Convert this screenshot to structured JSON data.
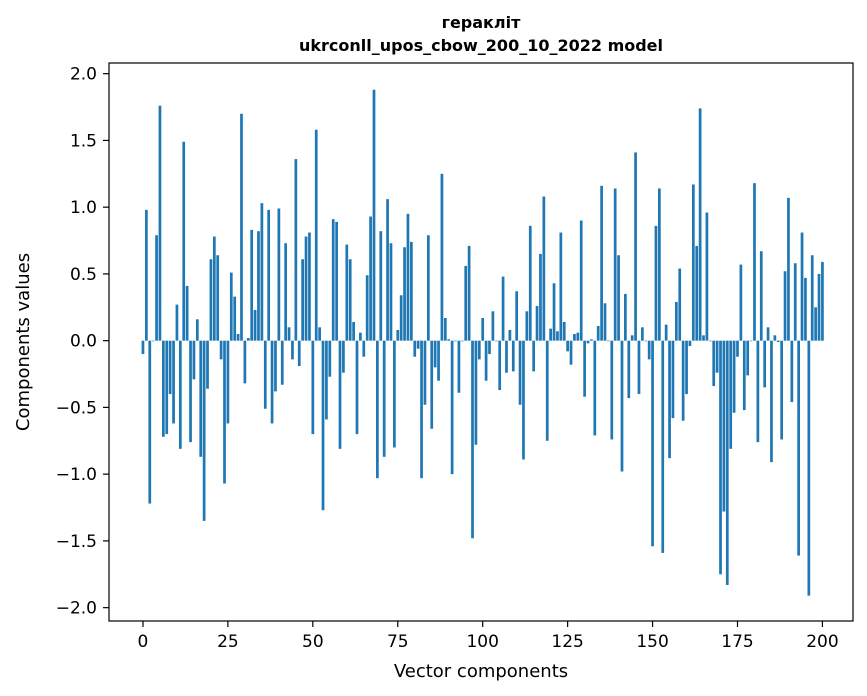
{
  "chart_data": {
    "type": "bar",
    "title": "гераклiт",
    "subtitle": "ukrconll_upos_cbow_200_10_2022 model",
    "xlabel": "Vector components",
    "ylabel": "Components values",
    "xlim": [
      -10,
      209
    ],
    "ylim": [
      -2.1,
      2.08
    ],
    "xticks": [
      0,
      25,
      50,
      75,
      100,
      125,
      150,
      175,
      200
    ],
    "yticks": [
      -2.0,
      -1.5,
      -1.0,
      -0.5,
      0.0,
      0.5,
      1.0,
      1.5,
      2.0
    ],
    "ytick_labels": [
      "−2.0",
      "−1.5",
      "−1.0",
      "−0.5",
      "0.0",
      "0.5",
      "1.0",
      "1.5",
      "2.0"
    ],
    "grid": false,
    "bar_color": "#1f77b4",
    "values": [
      -0.1,
      0.98,
      -1.22,
      0.0,
      0.79,
      1.76,
      -0.72,
      -0.7,
      -0.4,
      -0.62,
      0.27,
      -0.81,
      1.49,
      0.41,
      -0.76,
      -0.29,
      0.16,
      -0.87,
      -1.35,
      -0.36,
      0.61,
      0.78,
      0.64,
      -0.14,
      -1.07,
      -0.62,
      0.51,
      0.33,
      0.05,
      1.7,
      -0.32,
      0.02,
      0.83,
      0.23,
      0.82,
      1.03,
      -0.51,
      0.98,
      -0.62,
      -0.38,
      0.99,
      -0.33,
      0.73,
      0.1,
      -0.14,
      1.36,
      -0.19,
      0.61,
      0.78,
      0.81,
      -0.7,
      1.58,
      0.1,
      -1.27,
      -0.59,
      -0.27,
      0.91,
      0.89,
      -0.81,
      -0.24,
      0.72,
      0.61,
      0.14,
      -0.7,
      0.06,
      -0.12,
      0.49,
      0.93,
      1.88,
      -1.03,
      0.82,
      -0.87,
      1.06,
      0.73,
      -0.8,
      0.08,
      0.34,
      0.7,
      0.95,
      0.74,
      -0.12,
      -0.06,
      -1.03,
      -0.48,
      0.79,
      -0.66,
      -0.2,
      -0.3,
      1.25,
      0.17,
      0.01,
      -1.0,
      0.0,
      -0.39,
      0.0,
      0.56,
      0.71,
      -1.48,
      -0.78,
      -0.14,
      0.17,
      -0.3,
      -0.1,
      0.22,
      0.0,
      -0.37,
      0.48,
      -0.24,
      0.08,
      -0.23,
      0.37,
      -0.48,
      -0.89,
      0.22,
      0.86,
      -0.23,
      0.26,
      0.65,
      1.08,
      -0.75,
      0.09,
      0.43,
      0.07,
      0.81,
      0.14,
      -0.08,
      -0.18,
      0.05,
      0.06,
      0.9,
      -0.42,
      -0.02,
      0.01,
      -0.71,
      0.11,
      1.16,
      0.28,
      0.0,
      -0.74,
      1.14,
      0.64,
      -0.98,
      0.35,
      -0.43,
      0.04,
      1.41,
      -0.4,
      0.1,
      0.0,
      -0.14,
      -1.54,
      0.86,
      1.14,
      -1.59,
      0.12,
      -0.88,
      -0.58,
      0.29,
      0.54,
      -0.6,
      -0.4,
      -0.04,
      1.17,
      0.71,
      1.74,
      0.04,
      0.96,
      0.0,
      -0.34,
      -0.24,
      -1.75,
      -1.28,
      -1.83,
      -0.81,
      -0.54,
      -0.12,
      0.57,
      -0.52,
      -0.26,
      0.0,
      1.18,
      -0.76,
      0.67,
      -0.35,
      0.1,
      -0.91,
      0.04,
      -0.01,
      -0.74,
      0.52,
      1.07,
      -0.46,
      0.58,
      -1.61,
      0.81,
      0.47,
      -1.91,
      0.64,
      0.25,
      0.5,
      0.59
    ]
  }
}
